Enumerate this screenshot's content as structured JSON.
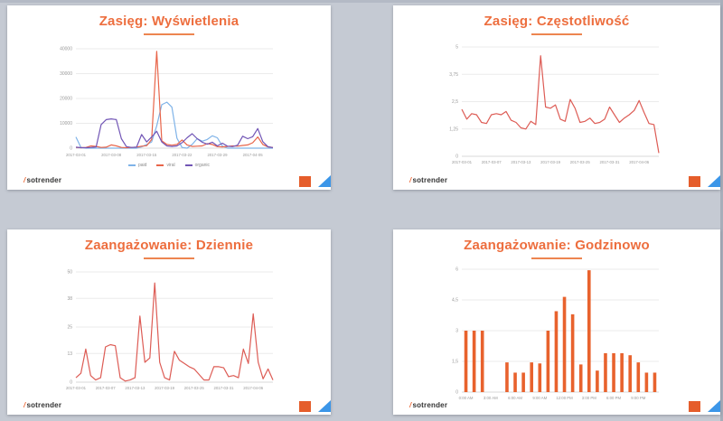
{
  "page": {
    "background_color": "#c5cad3"
  },
  "brand": {
    "logo_slash": "/",
    "logo_text": "sotrender",
    "accent_color": "#ed6e3e",
    "corner_square_color": "#e55d2b",
    "corner_triangle_color": "#3c96e8"
  },
  "chart_data": [
    {
      "type": "line",
      "title": "Zasięg: Wyświetlenia",
      "x_range": [
        "2017-03-01",
        "2017-04-09"
      ],
      "x_tick_labels": [
        "2017-03-01",
        "2017-03-08",
        "2017-03-15",
        "2017-03-22",
        "2017-03-29",
        "2017-04-05"
      ],
      "x_tick_indices": [
        0,
        7,
        14,
        21,
        28,
        35
      ],
      "ylim": [
        0,
        40000
      ],
      "ytick_values": [
        0,
        10000,
        20000,
        30000,
        40000
      ],
      "ytick_labels": [
        "0",
        "10000",
        "20000",
        "30000",
        "40000"
      ],
      "grid": true,
      "legend_position": "bottom",
      "series": [
        {
          "name": "paid",
          "color": "#7fb3e8",
          "values": [
            4500,
            300,
            0,
            0,
            0,
            0,
            0,
            0,
            0,
            0,
            0,
            0,
            0,
            500,
            1500,
            2500,
            9000,
            17500,
            18500,
            16500,
            4000,
            300,
            0,
            1500,
            3800,
            2800,
            3500,
            5000,
            4200,
            800,
            0,
            0,
            0,
            0,
            0,
            0,
            0,
            0,
            0,
            0
          ]
        },
        {
          "name": "viral",
          "color": "#e8654a",
          "values": [
            300,
            200,
            300,
            900,
            700,
            300,
            400,
            1300,
            900,
            300,
            200,
            300,
            400,
            800,
            1000,
            3500,
            39000,
            3000,
            1500,
            1200,
            1500,
            3300,
            1300,
            700,
            800,
            900,
            1800,
            1500,
            600,
            500,
            700,
            900,
            800,
            1100,
            1300,
            2200,
            4500,
            1500,
            500,
            300
          ]
        },
        {
          "name": "organic",
          "color": "#7155b5",
          "values": [
            400,
            200,
            200,
            300,
            500,
            9500,
            11500,
            11800,
            11500,
            3800,
            600,
            300,
            400,
            5500,
            2500,
            4500,
            6800,
            2500,
            900,
            700,
            900,
            2200,
            4200,
            5800,
            3800,
            2400,
            1600,
            2400,
            900,
            2000,
            800,
            600,
            1200,
            4800,
            3800,
            4600,
            7900,
            2600,
            600,
            200
          ]
        }
      ]
    },
    {
      "type": "line",
      "title": "Zasięg: Częstotliwość",
      "x_range": [
        "2017-03-01",
        "2017-04-10"
      ],
      "x_tick_labels": [
        "2017-03-01",
        "2017-03-07",
        "2017-03-13",
        "2017-03-19",
        "2017-03-25",
        "2017-03-31",
        "2017-04-06"
      ],
      "x_tick_indices": [
        0,
        6,
        12,
        18,
        24,
        30,
        36
      ],
      "ylim": [
        0,
        5
      ],
      "ytick_values": [
        0,
        1.25,
        2.5,
        3.75,
        5
      ],
      "ytick_labels": [
        "0",
        "1,25",
        "2,5",
        "3,75",
        "5"
      ],
      "grid": true,
      "legend_position": "none",
      "series": [
        {
          "name": "częstotliwość",
          "color": "#dd5c55",
          "values": [
            2.15,
            1.7,
            1.95,
            1.9,
            1.55,
            1.5,
            1.9,
            1.95,
            1.9,
            2.05,
            1.65,
            1.55,
            1.3,
            1.25,
            1.6,
            1.45,
            4.6,
            2.25,
            2.2,
            2.35,
            1.7,
            1.6,
            2.6,
            2.2,
            1.55,
            1.6,
            1.75,
            1.5,
            1.55,
            1.7,
            2.25,
            1.9,
            1.55,
            1.75,
            1.9,
            2.1,
            2.55,
            2.0,
            1.5,
            1.45,
            0.15
          ]
        }
      ]
    },
    {
      "type": "line",
      "title": "Zaangażowanie: Dziennie",
      "x_range": [
        "2017-03-01",
        "2017-04-10"
      ],
      "x_tick_labels": [
        "2017-03-01",
        "2017-03-07",
        "2017-03-13",
        "2017-03-19",
        "2017-03-25",
        "2017-03-31",
        "2017-04-06"
      ],
      "x_tick_indices": [
        0,
        6,
        12,
        18,
        24,
        30,
        36
      ],
      "ylim": [
        0,
        50
      ],
      "ytick_values": [
        0,
        13,
        25,
        38,
        50
      ],
      "ytick_labels": [
        "0",
        "13",
        "25",
        "38",
        "50"
      ],
      "grid": true,
      "legend_position": "none",
      "series": [
        {
          "name": "zaangażowanie",
          "color": "#dd5c55",
          "values": [
            2,
            4,
            15,
            3,
            1,
            2,
            16,
            17,
            16.5,
            2,
            0.5,
            1,
            2,
            30,
            9,
            11,
            45,
            9,
            2,
            1,
            14,
            10,
            8.5,
            7,
            6,
            3.5,
            1,
            1,
            7,
            7,
            6.5,
            2.5,
            3,
            2,
            15,
            8.5,
            31,
            9,
            1.5,
            6,
            1
          ]
        }
      ]
    },
    {
      "type": "bar",
      "title": "Zaangażowanie: Godzinowo",
      "categories": [
        "0:00",
        "1:00",
        "2:00",
        "3:00",
        "4:00",
        "5:00",
        "6:00",
        "7:00",
        "8:00",
        "9:00",
        "10:00",
        "11:00",
        "12:00",
        "13:00",
        "14:00",
        "15:00",
        "16:00",
        "17:00",
        "18:00",
        "19:00",
        "20:00",
        "21:00",
        "22:00",
        "23:00"
      ],
      "x_tick_labels": [
        "0:00 AM",
        "3:00 AM",
        "6:00 AM",
        "9:00 AM",
        "12:00 PM",
        "3:00 PM",
        "6:00 PM",
        "9:00 PM"
      ],
      "x_tick_indices": [
        0,
        3,
        6,
        9,
        12,
        15,
        18,
        21
      ],
      "ylim": [
        0,
        6
      ],
      "ytick_values": [
        0,
        1.5,
        3,
        4.5,
        6
      ],
      "ytick_labels": [
        "0",
        "1,5",
        "3",
        "4,5",
        "6"
      ],
      "grid": true,
      "legend_position": "none",
      "color": "#e8622d",
      "values": [
        3,
        3,
        3,
        0,
        0,
        1.45,
        0.95,
        0.95,
        1.45,
        1.4,
        3,
        3.95,
        4.65,
        3.8,
        1.35,
        5.95,
        1.05,
        1.9,
        1.9,
        1.9,
        1.8,
        1.45,
        0.95,
        0.95
      ]
    }
  ]
}
